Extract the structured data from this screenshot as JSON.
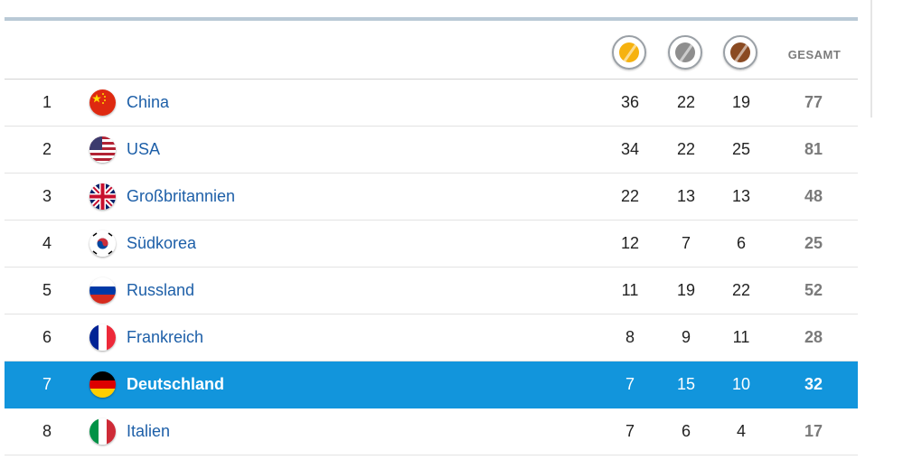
{
  "header": {
    "medals": [
      "gold-medal-icon",
      "silver-medal-icon",
      "bronze-medal-icon"
    ],
    "total_label": "GESAMT"
  },
  "colors": {
    "highlight": "#1295dc",
    "link": "#1d5fa8",
    "gold": "#f6b20f",
    "silver": "#8e8e8e",
    "bronze": "#8a4a22"
  },
  "rows": [
    {
      "rank": "1",
      "country": "China",
      "flag": "china-flag-icon",
      "gold": "36",
      "silver": "22",
      "bronze": "19",
      "total": "77"
    },
    {
      "rank": "2",
      "country": "USA",
      "flag": "usa-flag-icon",
      "gold": "34",
      "silver": "22",
      "bronze": "25",
      "total": "81"
    },
    {
      "rank": "3",
      "country": "Großbritannien",
      "flag": "uk-flag-icon",
      "gold": "22",
      "silver": "13",
      "bronze": "13",
      "total": "48"
    },
    {
      "rank": "4",
      "country": "Südkorea",
      "flag": "south-korea-flag-icon",
      "gold": "12",
      "silver": "7",
      "bronze": "6",
      "total": "25"
    },
    {
      "rank": "5",
      "country": "Russland",
      "flag": "russia-flag-icon",
      "gold": "11",
      "silver": "19",
      "bronze": "22",
      "total": "52"
    },
    {
      "rank": "6",
      "country": "Frankreich",
      "flag": "france-flag-icon",
      "gold": "8",
      "silver": "9",
      "bronze": "11",
      "total": "28"
    },
    {
      "rank": "7",
      "country": "Deutschland",
      "flag": "germany-flag-icon",
      "gold": "7",
      "silver": "15",
      "bronze": "10",
      "total": "32",
      "highlighted": true
    },
    {
      "rank": "8",
      "country": "Italien",
      "flag": "italy-flag-icon",
      "gold": "7",
      "silver": "6",
      "bronze": "4",
      "total": "17"
    }
  ]
}
